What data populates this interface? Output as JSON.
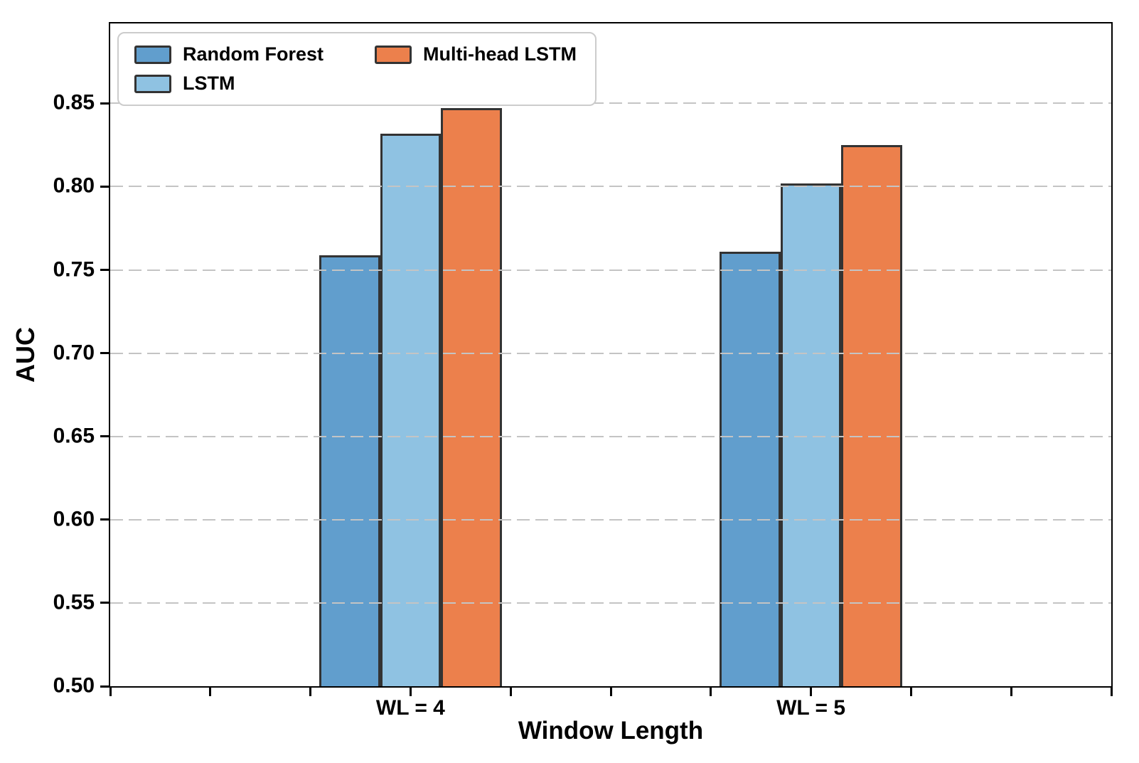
{
  "chart_data": {
    "type": "bar",
    "title": "",
    "xlabel": "Window Length",
    "ylabel": "AUC",
    "categories": [
      "WL = 4",
      "WL = 5"
    ],
    "series": [
      {
        "name": "Random Forest",
        "color": "#619ECD",
        "values": [
          0.759,
          0.761
        ]
      },
      {
        "name": "LSTM",
        "color": "#8FC2E2",
        "values": [
          0.832,
          0.802
        ]
      },
      {
        "name": "Multi-head LSTM",
        "color": "#EC804C",
        "values": [
          0.847,
          0.825
        ]
      }
    ],
    "axes": {
      "ylim": [
        0.5,
        0.898
      ],
      "yticks": [
        0.5,
        0.55,
        0.6,
        0.65,
        0.7,
        0.75,
        0.8,
        0.85
      ],
      "ytick_labels": [
        "0.50",
        "0.55",
        "0.60",
        "0.65",
        "0.70",
        "0.75",
        "0.80",
        "0.85"
      ],
      "xlim": [
        -0.75,
        1.75
      ],
      "x_tick_step": 0.25
    },
    "bar_width_units": 0.152,
    "grid": "horizontal-dashed",
    "legend_position": "upper-left",
    "colors": {
      "bar_edge": "#333333",
      "grid": "#c4c4c4",
      "spine": "#000000"
    }
  }
}
